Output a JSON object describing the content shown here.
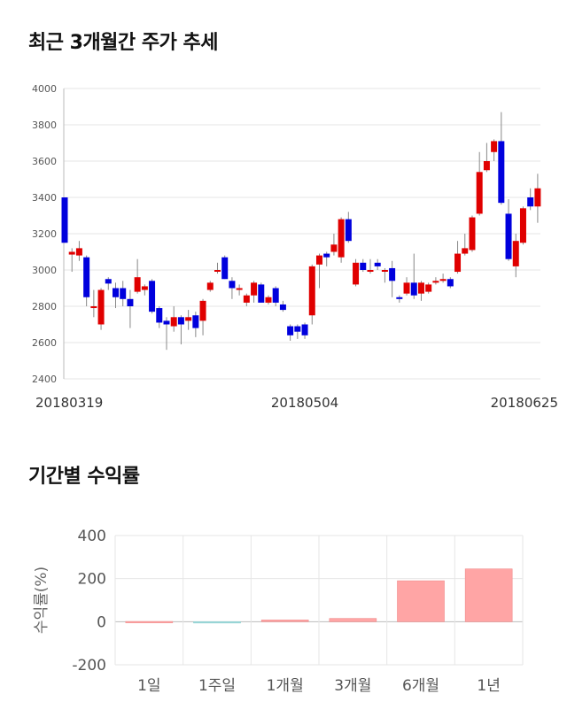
{
  "sections": {
    "price_title": "최근 3개월간 주가 추세",
    "returns_title": "기간별 수익률"
  },
  "colors": {
    "up": "#e00000",
    "down": "#0000dd",
    "positive_bar": "#ffa5a5",
    "negative_bar": "#a8dde0",
    "grid": "#e6e6e6"
  },
  "chart_data": [
    {
      "type": "candlestick",
      "title": "최근 3개월간 주가 추세",
      "ylim": [
        2400,
        4000
      ],
      "yticks": [
        "2400",
        "2600",
        "2800",
        "3000",
        "3200",
        "3400",
        "3600",
        "3800",
        "4000"
      ],
      "xtick_labels": [
        {
          "index": 0,
          "label": "20180319"
        },
        {
          "index": 33,
          "label": "20180504"
        },
        {
          "index": 66,
          "label": "20180625"
        }
      ],
      "grid": "horizontal",
      "candles": [
        [
          3400,
          3150,
          3400,
          3150
        ],
        [
          3085,
          3100,
          3120,
          2990
        ],
        [
          3080,
          3120,
          3160,
          3050
        ],
        [
          3070,
          2850,
          3080,
          2800
        ],
        [
          2790,
          2800,
          2890,
          2740
        ],
        [
          2700,
          2890,
          2900,
          2670
        ],
        [
          2950,
          2925,
          2960,
          2890
        ],
        [
          2900,
          2850,
          2930,
          2790
        ],
        [
          2900,
          2840,
          2940,
          2800
        ],
        [
          2840,
          2800,
          2890,
          2680
        ],
        [
          2880,
          2960,
          3060,
          2870
        ],
        [
          2890,
          2910,
          2920,
          2860
        ],
        [
          2940,
          2770,
          2950,
          2760
        ],
        [
          2790,
          2710,
          2800,
          2680
        ],
        [
          2720,
          2700,
          2740,
          2560
        ],
        [
          2690,
          2740,
          2800,
          2660
        ],
        [
          2740,
          2700,
          2750,
          2590
        ],
        [
          2720,
          2740,
          2780,
          2670
        ],
        [
          2750,
          2680,
          2770,
          2630
        ],
        [
          2720,
          2830,
          2840,
          2640
        ],
        [
          2890,
          2930,
          2940,
          2880
        ],
        [
          3000,
          3000,
          3040,
          2980
        ],
        [
          3070,
          2950,
          3080,
          2950
        ],
        [
          2940,
          2900,
          2960,
          2840
        ],
        [
          2900,
          2900,
          2920,
          2860
        ],
        [
          2820,
          2860,
          2870,
          2800
        ],
        [
          2860,
          2930,
          2940,
          2820
        ],
        [
          2920,
          2820,
          2930,
          2820
        ],
        [
          2820,
          2850,
          2860,
          2810
        ],
        [
          2900,
          2820,
          2910,
          2800
        ],
        [
          2810,
          2780,
          2830,
          2770
        ],
        [
          2690,
          2640,
          2700,
          2610
        ],
        [
          2690,
          2660,
          2700,
          2620
        ],
        [
          2700,
          2640,
          2710,
          2620
        ],
        [
          2750,
          3020,
          3030,
          2700
        ],
        [
          3030,
          3080,
          3090,
          2900
        ],
        [
          3090,
          3070,
          3100,
          3020
        ],
        [
          3100,
          3140,
          3200,
          3080
        ],
        [
          3070,
          3280,
          3290,
          3040
        ],
        [
          3280,
          3160,
          3320,
          3150
        ],
        [
          2920,
          3040,
          3060,
          2910
        ],
        [
          3040,
          3000,
          3060,
          2990
        ],
        [
          3000,
          3000,
          3060,
          2980
        ],
        [
          3040,
          3020,
          3060,
          3000
        ],
        [
          3000,
          3000,
          3010,
          2930
        ],
        [
          3010,
          2940,
          3050,
          2850
        ],
        [
          2850,
          2840,
          2860,
          2820
        ],
        [
          2870,
          2930,
          2960,
          2860
        ],
        [
          2930,
          2860,
          3090,
          2840
        ],
        [
          2870,
          2930,
          2940,
          2830
        ],
        [
          2880,
          2920,
          2930,
          2870
        ],
        [
          2930,
          2940,
          2960,
          2920
        ],
        [
          2940,
          2950,
          2980,
          2930
        ],
        [
          2950,
          2910,
          2960,
          2900
        ],
        [
          2990,
          3090,
          3160,
          2980
        ],
        [
          3090,
          3120,
          3200,
          3080
        ],
        [
          3110,
          3290,
          3300,
          3100
        ],
        [
          3310,
          3540,
          3650,
          3300
        ],
        [
          3550,
          3600,
          3700,
          3540
        ],
        [
          3650,
          3710,
          3720,
          3600
        ],
        [
          3710,
          3370,
          3870,
          3360
        ],
        [
          3310,
          3060,
          3390,
          3050
        ],
        [
          3020,
          3160,
          3200,
          2960
        ],
        [
          3150,
          3340,
          3350,
          3140
        ],
        [
          3400,
          3350,
          3450,
          3330
        ],
        [
          3350,
          3450,
          3530,
          3260
        ]
      ]
    },
    {
      "type": "bar",
      "title": "기간별 수익률",
      "categories": [
        "1일",
        "1주일",
        "1개월",
        "3개월",
        "6개월",
        "1년"
      ],
      "values": [
        1,
        -4,
        8,
        15,
        190,
        245
      ],
      "ylabel": "수익률(%)",
      "ylim": [
        -200,
        400
      ],
      "yticks": [
        "-200",
        "0",
        "200",
        "400"
      ],
      "grid": "both"
    }
  ]
}
